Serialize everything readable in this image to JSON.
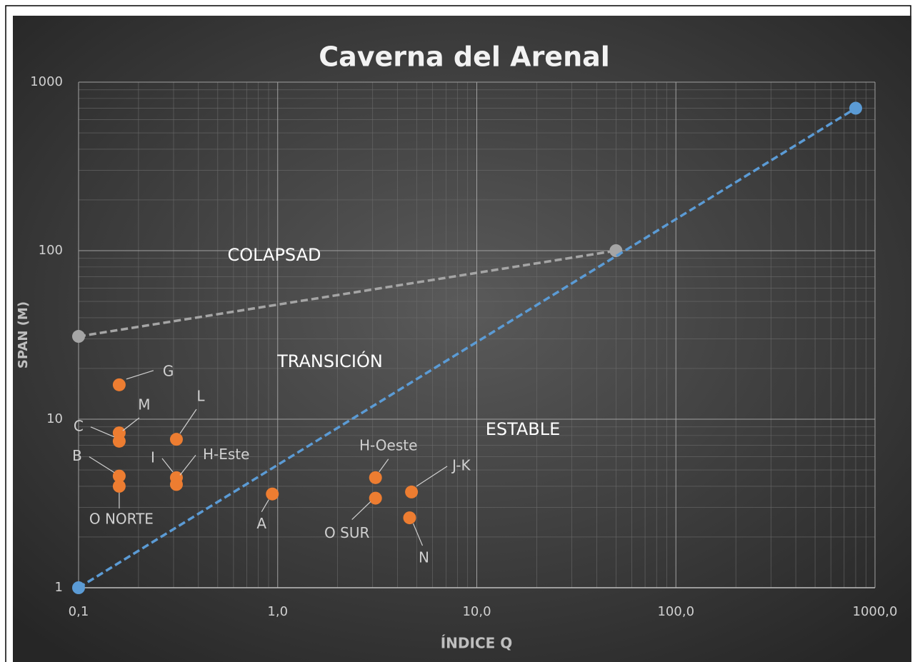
{
  "chart_data": {
    "type": "scatter",
    "title": "Caverna del Arenal",
    "xlabel": "ÍNDICE Q",
    "ylabel": "SPAN (M)",
    "xlog": true,
    "ylog": true,
    "grid": true,
    "xlim": [
      0.1,
      1000
    ],
    "ylim": [
      1,
      1000
    ],
    "xticks": [
      {
        "value": 0.1,
        "label": "0,1"
      },
      {
        "value": 1,
        "label": "1,0"
      },
      {
        "value": 10,
        "label": "10,0"
      },
      {
        "value": 100,
        "label": "100,0"
      },
      {
        "value": 1000,
        "label": "1000,0"
      }
    ],
    "yticks": [
      1,
      10,
      100,
      1000
    ],
    "annotations": [
      "COLAPSAD",
      "TRANSICIÓN",
      "ESTABLE"
    ],
    "series": [
      {
        "color": "#a5a5a5",
        "line": "dashed",
        "x": [
          0.1,
          50
        ],
        "values": [
          31,
          100
        ]
      },
      {
        "color": "#5b9bd5",
        "line": "dashed",
        "x": [
          0.1,
          800
        ],
        "values": [
          1,
          700
        ]
      },
      {
        "color": "#ed7d31",
        "labels": [
          "G",
          "M",
          "C",
          "B",
          "O NORTE",
          "L",
          "I",
          "H-Este",
          "A",
          "H-Oeste",
          "O SUR",
          "J-K",
          "N"
        ],
        "x": [
          0.16,
          0.16,
          0.16,
          0.16,
          0.16,
          0.31,
          0.31,
          0.31,
          0.94,
          3.1,
          3.1,
          4.7,
          4.6
        ],
        "values": [
          16,
          8.3,
          7.4,
          4.6,
          4.0,
          7.6,
          4.5,
          4.1,
          3.6,
          4.5,
          3.4,
          3.7,
          2.6
        ]
      }
    ]
  }
}
